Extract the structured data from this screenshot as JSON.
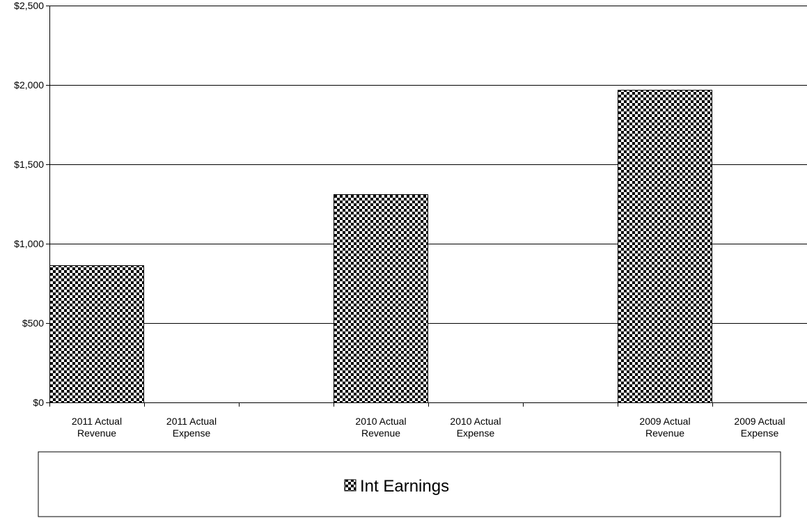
{
  "chart_data": {
    "type": "bar",
    "categories": [
      [
        "2011 Actual",
        "Revenue"
      ],
      [
        "2011 Actual",
        "Expense"
      ],
      [
        "",
        ""
      ],
      [
        "2010 Actual",
        "Revenue"
      ],
      [
        "2010 Actual",
        "Expense"
      ],
      [
        "",
        ""
      ],
      [
        "2009 Actual",
        "Revenue"
      ],
      [
        "2009 Actual",
        "Expense"
      ]
    ],
    "series": [
      {
        "name": "Int Earnings",
        "values": [
          865,
          0,
          0,
          1310,
          0,
          0,
          1970,
          0
        ],
        "fill_pattern": "checkerboard",
        "colors": {
          "fill": "#000000",
          "background": "#ffffff"
        }
      }
    ],
    "ylim": [
      0,
      2500
    ],
    "yticks": [
      0,
      500,
      1000,
      1500,
      2000,
      2500
    ],
    "ytick_labels": [
      "$0",
      "$500",
      "$1,000",
      "$1,500",
      "$2,000",
      "$2,500"
    ],
    "xlabel": "",
    "ylabel": "",
    "title": "",
    "grid": true,
    "legend_position": "bottom"
  },
  "legend": {
    "label": "Int Earnings"
  }
}
